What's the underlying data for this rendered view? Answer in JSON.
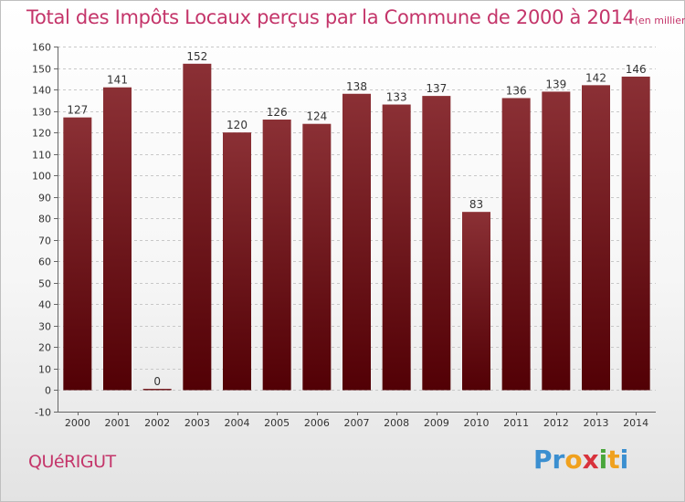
{
  "header": {
    "title": "Total des Impôts Locaux perçus par la Commune de 2000 à 2014",
    "subtitle": "(en milliers d'€)"
  },
  "commune": "QUéRIGUT",
  "logo": {
    "letters": [
      "P",
      "r",
      "o",
      "x",
      "i",
      "t",
      "i"
    ],
    "colors": [
      "#3b8fd0",
      "#3b8fd0",
      "#f0a11e",
      "#d8323c",
      "#4aa63c",
      "#f0a11e",
      "#3b8fd0"
    ]
  },
  "colors": {
    "bar_top": "#8b3035",
    "bar_bottom": "#520005",
    "accent": "#c4356a"
  },
  "chart_data": {
    "type": "bar",
    "title": "Total des Impôts Locaux perçus par la Commune de 2000 à 2014",
    "subtitle": "(en milliers d'€)",
    "xlabel": "",
    "ylabel": "",
    "categories": [
      "2000",
      "2001",
      "2002",
      "2003",
      "2004",
      "2005",
      "2006",
      "2007",
      "2008",
      "2009",
      "2010",
      "2011",
      "2012",
      "2013",
      "2014"
    ],
    "values": [
      127,
      141,
      0,
      152,
      120,
      126,
      124,
      138,
      133,
      137,
      83,
      136,
      139,
      142,
      146
    ],
    "ylim": [
      -10,
      160
    ],
    "yticks": [
      -10,
      0,
      10,
      20,
      30,
      40,
      50,
      60,
      70,
      80,
      90,
      100,
      110,
      120,
      130,
      140,
      150,
      160
    ],
    "grid": true
  }
}
